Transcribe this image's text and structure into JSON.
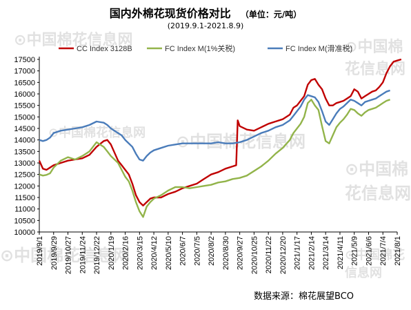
{
  "header": {
    "title": "国内外棉花现货价格对比",
    "unit": "（单位：元/吨）",
    "date_range": "(2019.9.1-2021.8.9)"
  },
  "footer": {
    "source": "数据来源：棉花展望BCO"
  },
  "watermark": {
    "text": "中国棉花信息网",
    "url": "www.cottonchina.org.cn"
  },
  "colors": {
    "cc": "#c00000",
    "fc1": "#92b44a",
    "fcm": "#4a7cba",
    "axis": "#000000"
  },
  "chart_data": {
    "type": "line",
    "title": "国内外棉花现货价格对比",
    "ylim": [
      10000,
      17500
    ],
    "yticks": [
      10000,
      10500,
      11000,
      11500,
      12000,
      12500,
      13000,
      13500,
      14000,
      14500,
      15000,
      15500,
      16000,
      16500,
      17000,
      17500
    ],
    "xlim": [
      "2019-09-01",
      "2021-08-01"
    ],
    "xticks": [
      "2019/9/1",
      "2019/9/29",
      "2019/10/27",
      "2019/11/24",
      "2019/12/22",
      "2020/1/19",
      "2020/2/16",
      "2020/3/15",
      "2020/4/12",
      "2020/5/10",
      "2020/6/7",
      "2020/7/5",
      "2020/8/2",
      "2020/8/30",
      "2020/9/27",
      "2020/10/25",
      "2020/11/22",
      "2020/12/20",
      "2021/1/17",
      "2021/2/14",
      "2021/3/14",
      "2021/4/11",
      "2021/5/9",
      "2021/6/6",
      "2021/7/4",
      "2021/8/1"
    ],
    "legend": "top",
    "grid": false,
    "series": [
      {
        "name": "CC Index 3128B",
        "color": "#c00000",
        "points": [
          [
            "2019-09-01",
            13100
          ],
          [
            "2019-09-08",
            12750
          ],
          [
            "2019-09-15",
            12700
          ],
          [
            "2019-09-22",
            12800
          ],
          [
            "2019-09-29",
            12900
          ],
          [
            "2019-10-13",
            13000
          ],
          [
            "2019-10-27",
            13100
          ],
          [
            "2019-11-10",
            13150
          ],
          [
            "2019-11-24",
            13200
          ],
          [
            "2019-12-08",
            13350
          ],
          [
            "2019-12-22",
            13700
          ],
          [
            "2020-01-05",
            13950
          ],
          [
            "2020-01-12",
            14000
          ],
          [
            "2020-01-19",
            13800
          ],
          [
            "2020-02-02",
            13100
          ],
          [
            "2020-02-09",
            12900
          ],
          [
            "2020-02-16",
            12700
          ],
          [
            "2020-02-23",
            12500
          ],
          [
            "2020-03-01",
            12100
          ],
          [
            "2020-03-08",
            11600
          ],
          [
            "2020-03-15",
            11300
          ],
          [
            "2020-03-22",
            11150
          ],
          [
            "2020-03-29",
            11300
          ],
          [
            "2020-04-05",
            11450
          ],
          [
            "2020-04-12",
            11500
          ],
          [
            "2020-04-26",
            11500
          ],
          [
            "2020-05-10",
            11650
          ],
          [
            "2020-05-24",
            11750
          ],
          [
            "2020-06-07",
            11900
          ],
          [
            "2020-06-21",
            12000
          ],
          [
            "2020-07-05",
            12100
          ],
          [
            "2020-07-19",
            12300
          ],
          [
            "2020-08-02",
            12500
          ],
          [
            "2020-08-16",
            12600
          ],
          [
            "2020-08-30",
            12750
          ],
          [
            "2020-09-13",
            12850
          ],
          [
            "2020-09-20",
            12900
          ],
          [
            "2020-09-23",
            14850
          ],
          [
            "2020-09-27",
            14600
          ],
          [
            "2020-10-11",
            14450
          ],
          [
            "2020-10-25",
            14400
          ],
          [
            "2020-11-08",
            14550
          ],
          [
            "2020-11-22",
            14700
          ],
          [
            "2020-12-06",
            14800
          ],
          [
            "2020-12-20",
            14900
          ],
          [
            "2021-01-03",
            15100
          ],
          [
            "2021-01-10",
            15400
          ],
          [
            "2021-01-17",
            15500
          ],
          [
            "2021-01-24",
            15700
          ],
          [
            "2021-01-31",
            15900
          ],
          [
            "2021-02-07",
            16400
          ],
          [
            "2021-02-14",
            16600
          ],
          [
            "2021-02-21",
            16650
          ],
          [
            "2021-02-28",
            16400
          ],
          [
            "2021-03-07",
            16200
          ],
          [
            "2021-03-14",
            15800
          ],
          [
            "2021-03-21",
            15500
          ],
          [
            "2021-03-28",
            15500
          ],
          [
            "2021-04-04",
            15600
          ],
          [
            "2021-04-11",
            15650
          ],
          [
            "2021-04-18",
            15700
          ],
          [
            "2021-04-25",
            15800
          ],
          [
            "2021-05-02",
            15900
          ],
          [
            "2021-05-09",
            16200
          ],
          [
            "2021-05-16",
            16100
          ],
          [
            "2021-05-23",
            15800
          ],
          [
            "2021-05-30",
            15900
          ],
          [
            "2021-06-06",
            16000
          ],
          [
            "2021-06-13",
            16100
          ],
          [
            "2021-06-20",
            16150
          ],
          [
            "2021-06-27",
            16300
          ],
          [
            "2021-07-04",
            16500
          ],
          [
            "2021-07-11",
            16900
          ],
          [
            "2021-07-18",
            17200
          ],
          [
            "2021-07-25",
            17400
          ],
          [
            "2021-08-01",
            17450
          ],
          [
            "2021-08-09",
            17500
          ]
        ]
      },
      {
        "name": "FC Index M(1%关税)",
        "color": "#92b44a",
        "points": [
          [
            "2019-09-01",
            12500
          ],
          [
            "2019-09-08",
            12450
          ],
          [
            "2019-09-15",
            12480
          ],
          [
            "2019-09-22",
            12550
          ],
          [
            "2019-09-29",
            12800
          ],
          [
            "2019-10-13",
            13100
          ],
          [
            "2019-10-27",
            13250
          ],
          [
            "2019-11-10",
            13150
          ],
          [
            "2019-11-24",
            13300
          ],
          [
            "2019-12-08",
            13500
          ],
          [
            "2019-12-22",
            13900
          ],
          [
            "2020-01-05",
            13700
          ],
          [
            "2020-01-12",
            13500
          ],
          [
            "2020-01-19",
            13300
          ],
          [
            "2020-02-02",
            13000
          ],
          [
            "2020-02-09",
            12700
          ],
          [
            "2020-02-16",
            12400
          ],
          [
            "2020-02-23",
            12200
          ],
          [
            "2020-03-01",
            11800
          ],
          [
            "2020-03-08",
            11300
          ],
          [
            "2020-03-15",
            10900
          ],
          [
            "2020-03-22",
            10650
          ],
          [
            "2020-03-29",
            11100
          ],
          [
            "2020-04-05",
            11300
          ],
          [
            "2020-04-12",
            11450
          ],
          [
            "2020-04-26",
            11600
          ],
          [
            "2020-05-10",
            11800
          ],
          [
            "2020-05-24",
            11950
          ],
          [
            "2020-06-07",
            11950
          ],
          [
            "2020-06-21",
            11900
          ],
          [
            "2020-07-05",
            11950
          ],
          [
            "2020-07-19",
            12000
          ],
          [
            "2020-08-02",
            12050
          ],
          [
            "2020-08-16",
            12150
          ],
          [
            "2020-08-30",
            12200
          ],
          [
            "2020-09-13",
            12300
          ],
          [
            "2020-09-27",
            12350
          ],
          [
            "2020-10-11",
            12450
          ],
          [
            "2020-10-25",
            12650
          ],
          [
            "2020-11-08",
            12850
          ],
          [
            "2020-11-22",
            13100
          ],
          [
            "2020-12-06",
            13400
          ],
          [
            "2020-12-20",
            13650
          ],
          [
            "2021-01-03",
            14000
          ],
          [
            "2021-01-10",
            14300
          ],
          [
            "2021-01-17",
            14500
          ],
          [
            "2021-01-24",
            14700
          ],
          [
            "2021-01-31",
            15000
          ],
          [
            "2021-02-07",
            15600
          ],
          [
            "2021-02-14",
            15750
          ],
          [
            "2021-02-21",
            15500
          ],
          [
            "2021-02-28",
            15300
          ],
          [
            "2021-03-07",
            14600
          ],
          [
            "2021-03-14",
            13950
          ],
          [
            "2021-03-21",
            13850
          ],
          [
            "2021-03-28",
            14200
          ],
          [
            "2021-04-04",
            14550
          ],
          [
            "2021-04-11",
            14750
          ],
          [
            "2021-04-18",
            14900
          ],
          [
            "2021-04-25",
            15100
          ],
          [
            "2021-05-02",
            15350
          ],
          [
            "2021-05-09",
            15300
          ],
          [
            "2021-05-16",
            15150
          ],
          [
            "2021-05-23",
            15050
          ],
          [
            "2021-05-30",
            15200
          ],
          [
            "2021-06-06",
            15300
          ],
          [
            "2021-06-13",
            15350
          ],
          [
            "2021-06-20",
            15400
          ],
          [
            "2021-06-27",
            15500
          ],
          [
            "2021-07-04",
            15600
          ],
          [
            "2021-07-11",
            15700
          ],
          [
            "2021-07-18",
            15750
          ]
        ]
      },
      {
        "name": "FC Index M(滑准税)",
        "color": "#4a7cba",
        "points": [
          [
            "2019-09-01",
            14000
          ],
          [
            "2019-09-08",
            13950
          ],
          [
            "2019-09-15",
            14000
          ],
          [
            "2019-09-22",
            14100
          ],
          [
            "2019-09-29",
            14300
          ],
          [
            "2019-10-13",
            14400
          ],
          [
            "2019-10-27",
            14450
          ],
          [
            "2019-11-10",
            14500
          ],
          [
            "2019-11-24",
            14550
          ],
          [
            "2019-12-08",
            14650
          ],
          [
            "2019-12-22",
            14800
          ],
          [
            "2020-01-05",
            14750
          ],
          [
            "2020-01-12",
            14650
          ],
          [
            "2020-01-19",
            14500
          ],
          [
            "2020-02-02",
            14300
          ],
          [
            "2020-02-09",
            14200
          ],
          [
            "2020-02-16",
            14000
          ],
          [
            "2020-02-23",
            13850
          ],
          [
            "2020-03-01",
            13700
          ],
          [
            "2020-03-08",
            13400
          ],
          [
            "2020-03-15",
            13150
          ],
          [
            "2020-03-22",
            13100
          ],
          [
            "2020-03-29",
            13300
          ],
          [
            "2020-04-05",
            13450
          ],
          [
            "2020-04-12",
            13550
          ],
          [
            "2020-04-26",
            13650
          ],
          [
            "2020-05-10",
            13750
          ],
          [
            "2020-05-24",
            13800
          ],
          [
            "2020-06-07",
            13850
          ],
          [
            "2020-06-21",
            13850
          ],
          [
            "2020-07-05",
            13850
          ],
          [
            "2020-07-19",
            13850
          ],
          [
            "2020-08-02",
            13850
          ],
          [
            "2020-08-16",
            13900
          ],
          [
            "2020-08-30",
            13850
          ],
          [
            "2020-09-13",
            13850
          ],
          [
            "2020-09-27",
            13900
          ],
          [
            "2020-10-11",
            14000
          ],
          [
            "2020-10-25",
            14150
          ],
          [
            "2020-11-08",
            14300
          ],
          [
            "2020-11-22",
            14400
          ],
          [
            "2020-12-06",
            14550
          ],
          [
            "2020-12-20",
            14650
          ],
          [
            "2021-01-03",
            14850
          ],
          [
            "2021-01-10",
            15050
          ],
          [
            "2021-01-17",
            15250
          ],
          [
            "2021-01-24",
            15450
          ],
          [
            "2021-01-31",
            15750
          ],
          [
            "2021-02-07",
            15950
          ],
          [
            "2021-02-14",
            15900
          ],
          [
            "2021-02-21",
            15850
          ],
          [
            "2021-02-28",
            15650
          ],
          [
            "2021-03-07",
            15250
          ],
          [
            "2021-03-14",
            14800
          ],
          [
            "2021-03-21",
            14650
          ],
          [
            "2021-03-28",
            14900
          ],
          [
            "2021-04-04",
            15150
          ],
          [
            "2021-04-11",
            15350
          ],
          [
            "2021-04-18",
            15450
          ],
          [
            "2021-04-25",
            15600
          ],
          [
            "2021-05-02",
            15750
          ],
          [
            "2021-05-09",
            15700
          ],
          [
            "2021-05-16",
            15600
          ],
          [
            "2021-05-23",
            15500
          ],
          [
            "2021-05-30",
            15650
          ],
          [
            "2021-06-06",
            15700
          ],
          [
            "2021-06-13",
            15750
          ],
          [
            "2021-06-20",
            15800
          ],
          [
            "2021-06-27",
            15900
          ],
          [
            "2021-07-04",
            16000
          ],
          [
            "2021-07-11",
            16100
          ],
          [
            "2021-07-18",
            16150
          ]
        ]
      }
    ]
  }
}
